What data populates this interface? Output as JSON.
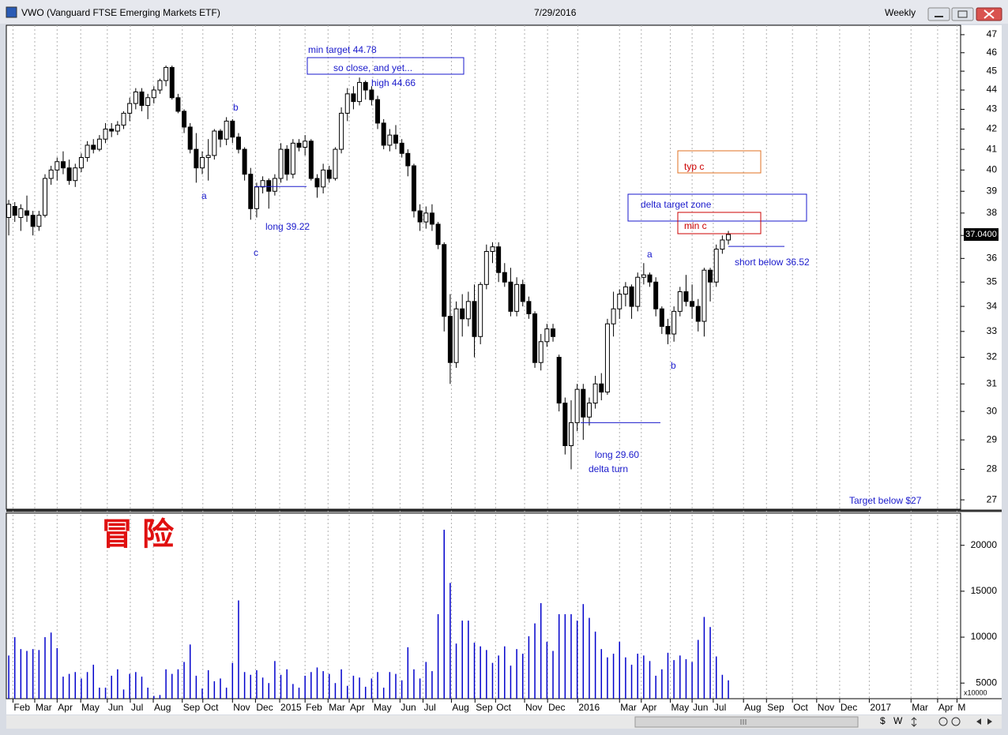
{
  "window": {
    "title": "VWO (Vanguard FTSE Emerging Markets ETF)",
    "date": "7/29/2016",
    "period": "Weekly",
    "toolbar": [
      "$",
      "W"
    ]
  },
  "chart_data": [
    {
      "type": "candlestick",
      "yscale": "log",
      "up_color": "#ffffff",
      "down_color": "#000000",
      "ylim": [
        26.7,
        47.53
      ],
      "yticks": [
        27,
        28,
        29,
        30,
        31,
        32,
        33,
        34,
        35,
        36,
        37,
        38,
        39,
        40,
        41,
        42,
        43,
        44,
        45,
        46,
        47
      ],
      "xlim": [
        -0.4,
        157.4
      ],
      "xticks": [
        {
          "value": 0.7,
          "label": "Feb"
        },
        {
          "value": 4.3,
          "label": "Mar"
        },
        {
          "value": 8.0,
          "label": "Apr"
        },
        {
          "value": 11.9,
          "label": "May"
        },
        {
          "value": 16.3,
          "label": "Jun"
        },
        {
          "value": 20.1,
          "label": "Jul"
        },
        {
          "value": 23.9,
          "label": "Aug"
        },
        {
          "value": 28.7,
          "label": "Sep"
        },
        {
          "value": 32.1,
          "label": "Oct"
        },
        {
          "value": 37.0,
          "label": "Nov"
        },
        {
          "value": 40.8,
          "label": "Dec"
        },
        {
          "value": 44.8,
          "label": "2015"
        },
        {
          "value": 49.0,
          "label": "Feb"
        },
        {
          "value": 52.8,
          "label": "Mar"
        },
        {
          "value": 56.3,
          "label": "Apr"
        },
        {
          "value": 60.2,
          "label": "May"
        },
        {
          "value": 64.7,
          "label": "Jun"
        },
        {
          "value": 68.5,
          "label": "Jul"
        },
        {
          "value": 73.2,
          "label": "Aug"
        },
        {
          "value": 77.1,
          "label": "Sep"
        },
        {
          "value": 80.5,
          "label": "Oct"
        },
        {
          "value": 85.3,
          "label": "Nov"
        },
        {
          "value": 89.1,
          "label": "Dec"
        },
        {
          "value": 94.1,
          "label": "2016"
        },
        {
          "value": 101.0,
          "label": "Mar"
        },
        {
          "value": 104.6,
          "label": "Apr"
        },
        {
          "value": 109.4,
          "label": "May"
        },
        {
          "value": 113.0,
          "label": "Jun"
        },
        {
          "value": 116.5,
          "label": "Jul"
        },
        {
          "value": 121.5,
          "label": "Aug"
        },
        {
          "value": 125.3,
          "label": "Sep"
        },
        {
          "value": 129.6,
          "label": "Oct"
        },
        {
          "value": 133.6,
          "label": "Nov"
        },
        {
          "value": 137.4,
          "label": "Dec"
        },
        {
          "value": 142.3,
          "label": "2017"
        },
        {
          "value": 149.2,
          "label": "Mar"
        },
        {
          "value": 153.6,
          "label": "Apr"
        },
        {
          "value": 156.8,
          "label": "M"
        }
      ],
      "open": [
        37.8,
        38.3,
        37.8,
        38.1,
        37.9,
        37.4,
        37.9,
        39.6,
        40.0,
        40.4,
        40.1,
        39.5,
        40.1,
        40.6,
        41.2,
        41.0,
        41.5,
        42.0,
        41.9,
        42.2,
        42.8,
        43.3,
        43.9,
        43.2,
        43.6,
        44.0,
        44.5,
        45.2,
        43.6,
        42.9,
        42.1,
        41.0,
        40.1,
        40.6,
        40.7,
        41.9,
        41.5,
        42.4,
        41.6,
        41.0,
        39.8,
        38.2,
        39.2,
        39.5,
        39.0,
        39.6,
        41.0,
        39.8,
        41.3,
        41.1,
        41.4,
        39.6,
        39.2,
        40.0,
        39.6,
        41.0,
        42.8,
        43.8,
        43.4,
        44.4,
        44.0,
        43.5,
        42.3,
        41.2,
        41.7,
        41.3,
        40.8,
        40.2,
        38.1,
        37.6,
        38.0,
        37.5,
        36.6,
        33.6,
        31.8,
        33.9,
        33.5,
        34.2,
        32.8,
        34.9,
        36.3,
        36.5,
        35.4,
        35.0,
        33.8,
        34.9,
        34.2,
        33.7,
        31.8,
        32.6,
        33.1,
        32.0,
        30.3,
        28.8,
        29.6,
        30.8,
        29.8,
        30.3,
        31.0,
        30.7,
        33.3,
        33.9,
        34.5,
        34.8,
        34.0,
        35.2,
        35.3,
        35.0,
        33.9,
        33.2,
        32.9,
        33.8,
        34.6,
        34.2,
        34.0,
        33.4,
        35.5,
        35.0,
        36.4,
        36.8
      ],
      "high": [
        38.6,
        38.5,
        38.4,
        38.8,
        38.1,
        38.1,
        39.8,
        40.2,
        40.6,
        40.9,
        40.5,
        40.3,
        40.8,
        41.4,
        41.5,
        41.7,
        42.3,
        42.3,
        42.4,
        42.9,
        43.6,
        44.1,
        44.1,
        43.8,
        44.2,
        44.6,
        45.3,
        45.3,
        43.8,
        43.0,
        42.3,
        41.8,
        40.9,
        41.5,
        42.0,
        42.0,
        42.6,
        42.5,
        41.8,
        41.1,
        40.1,
        39.4,
        39.7,
        39.6,
        39.8,
        41.3,
        41.2,
        41.5,
        41.5,
        41.7,
        41.5,
        39.8,
        40.3,
        40.2,
        41.1,
        43.1,
        44.1,
        44.2,
        44.66,
        44.5,
        44.2,
        43.7,
        42.5,
        42.0,
        42.2,
        41.5,
        41.0,
        40.3,
        38.4,
        38.3,
        38.4,
        37.6,
        36.7,
        34.5,
        34.2,
        34.5,
        34.6,
        34.9,
        35.0,
        36.6,
        36.7,
        36.7,
        35.8,
        35.6,
        35.2,
        35.1,
        34.4,
        33.8,
        32.9,
        33.3,
        33.3,
        32.1,
        30.5,
        30.4,
        31.0,
        31.0,
        30.5,
        31.3,
        31.4,
        33.5,
        34.6,
        34.7,
        35.0,
        34.9,
        35.4,
        35.8,
        35.4,
        35.2,
        34.0,
        33.5,
        34.0,
        34.8,
        35.3,
        34.9,
        34.3,
        35.6,
        35.6,
        36.6,
        37.0,
        37.2
      ],
      "low": [
        37.0,
        37.6,
        37.2,
        37.6,
        37.0,
        37.2,
        37.8,
        39.3,
        39.5,
        39.8,
        39.3,
        39.2,
        39.9,
        40.4,
        40.8,
        40.9,
        41.3,
        41.6,
        41.7,
        42.0,
        42.4,
        43.0,
        42.9,
        42.5,
        43.3,
        43.8,
        44.2,
        43.5,
        42.8,
        41.8,
        40.8,
        39.4,
        39.8,
        39.5,
        40.5,
        41.1,
        41.2,
        41.3,
        40.8,
        39.5,
        37.7,
        37.8,
        38.9,
        38.2,
        38.8,
        39.4,
        39.5,
        39.6,
        40.9,
        40.7,
        39.5,
        38.7,
        38.9,
        39.4,
        39.5,
        40.8,
        42.4,
        43.0,
        43.2,
        43.5,
        43.2,
        42.0,
        41.0,
        40.9,
        41.0,
        40.6,
        39.7,
        37.8,
        37.2,
        37.3,
        37.2,
        36.4,
        33.0,
        31.0,
        31.6,
        32.8,
        33.2,
        32.0,
        32.5,
        34.7,
        35.8,
        35.0,
        34.8,
        33.6,
        33.6,
        34.0,
        33.5,
        31.6,
        31.5,
        32.4,
        32.6,
        30.0,
        28.5,
        28.0,
        29.3,
        29.0,
        29.5,
        30.1,
        30.4,
        30.6,
        32.8,
        33.5,
        34.0,
        33.5,
        33.8,
        34.9,
        34.8,
        33.6,
        32.9,
        32.5,
        32.6,
        33.6,
        34.0,
        33.5,
        33.0,
        32.8,
        34.2,
        34.8,
        36.2,
        36.6
      ],
      "close": [
        38.4,
        37.9,
        38.2,
        37.9,
        37.4,
        37.9,
        39.6,
        40.0,
        40.4,
        40.1,
        39.5,
        40.1,
        40.6,
        41.2,
        41.0,
        41.5,
        42.0,
        41.9,
        42.2,
        42.8,
        43.3,
        43.9,
        43.2,
        43.6,
        44.0,
        44.5,
        45.2,
        43.6,
        42.9,
        42.1,
        41.0,
        40.1,
        40.6,
        40.7,
        41.9,
        41.5,
        42.4,
        41.6,
        41.0,
        39.8,
        38.2,
        39.2,
        39.5,
        39.0,
        39.6,
        41.0,
        39.8,
        41.3,
        41.1,
        41.4,
        39.6,
        39.2,
        40.0,
        39.6,
        41.0,
        42.8,
        43.8,
        43.4,
        44.4,
        44.0,
        43.5,
        42.3,
        41.2,
        41.7,
        41.3,
        40.8,
        40.2,
        38.1,
        37.6,
        38.0,
        37.5,
        36.6,
        33.6,
        31.8,
        33.9,
        33.5,
        34.2,
        32.8,
        34.9,
        36.3,
        36.5,
        35.4,
        35.0,
        33.8,
        34.9,
        34.2,
        33.7,
        31.8,
        32.6,
        33.1,
        32.8,
        30.3,
        28.8,
        29.6,
        30.8,
        29.8,
        30.3,
        31.0,
        30.7,
        33.3,
        33.9,
        34.5,
        34.8,
        34.0,
        35.2,
        35.3,
        35.0,
        33.9,
        33.2,
        32.9,
        33.8,
        34.6,
        34.2,
        34.0,
        33.4,
        35.5,
        35.0,
        36.4,
        36.8,
        37.04
      ],
      "last_price": {
        "value": 37.04,
        "label": "37.0400"
      },
      "annotations": [
        {
          "text": "a"
        },
        {
          "text": "b"
        },
        {
          "text": "c"
        },
        {
          "text": "long 39.22",
          "value": 39.22
        },
        {
          "text": "min target 44.78"
        },
        {
          "text": "so close, and yet..."
        },
        {
          "text": "high 44.66"
        },
        {
          "text": "long 29.60",
          "value": 29.6
        },
        {
          "text": "delta turn"
        },
        {
          "text": "a"
        },
        {
          "text": "b"
        },
        {
          "text": "short below 36.52",
          "value": 36.52
        },
        {
          "text": "delta target zone"
        },
        {
          "text": "min c"
        },
        {
          "text": "typ c"
        },
        {
          "text": "Target below $27"
        },
        {
          "text": "冒险"
        }
      ]
    },
    {
      "type": "bar",
      "color": "#0000cc",
      "ylim": [
        3300,
        23500
      ],
      "yticks": [
        5000,
        10000,
        15000,
        20000
      ],
      "axis_unit": "x10000",
      "values": [
        8000,
        10000,
        8700,
        8500,
        8700,
        8600,
        10000,
        10500,
        8800,
        5700,
        6000,
        6200,
        5500,
        6200,
        7000,
        4500,
        4500,
        5800,
        6500,
        4300,
        6000,
        6200,
        5700,
        4500,
        3600,
        3700,
        6500,
        6000,
        6500,
        7300,
        9200,
        5800,
        4400,
        6400,
        5200,
        5500,
        4500,
        7200,
        14000,
        6200,
        5900,
        6400,
        5600,
        5000,
        7400,
        5900,
        6500,
        4900,
        4500,
        5800,
        6200,
        6700,
        6300,
        6000,
        5000,
        6500,
        4700,
        5800,
        5600,
        4600,
        5500,
        6200,
        4500,
        6200,
        6000,
        5300,
        8900,
        6500,
        5500,
        7300,
        6300,
        12500,
        21700,
        15900,
        9300,
        11800,
        11800,
        9400,
        9000,
        8600,
        7200,
        8000,
        9000,
        6900,
        8700,
        8200,
        10100,
        11500,
        13700,
        9500,
        8500,
        12500,
        12500,
        12500,
        11800,
        13600,
        12100,
        10600,
        8700,
        7800,
        8200,
        9500,
        7800,
        7000,
        8200,
        8000,
        7400,
        5800,
        6500,
        8300,
        7500,
        8000,
        7600,
        7300,
        9700,
        12200,
        11100,
        7900,
        5900,
        5300
      ]
    }
  ]
}
